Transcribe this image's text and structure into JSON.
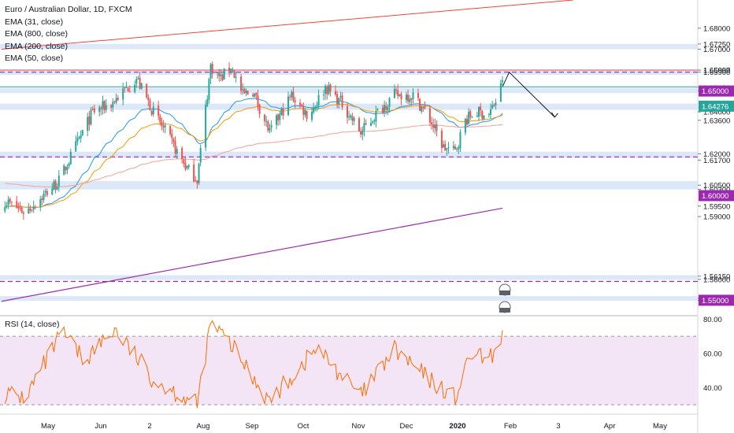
{
  "legend": {
    "symbol": "Euro / Australian Dollar, 1D, FXCM",
    "indicators": [
      "EMA (31, close)",
      "EMA (800, close)",
      "EMA (200, close)",
      "EMA (50, close)"
    ]
  },
  "rsi": {
    "label": "RSI (14, close)",
    "levels": [
      "80.00",
      "60.00",
      "40.00"
    ],
    "band": [
      30,
      70
    ],
    "range": [
      25,
      82
    ]
  },
  "colors": {
    "up": "#26a69a",
    "down": "#ef5350",
    "zone": "#d6e4f7",
    "magenta": "#9c27b0",
    "ema31": "#2196f3",
    "ema50": "#ff9800",
    "ema200": "#f4a09a",
    "ema800": "#9c27b0",
    "trend": "#f44336",
    "last_price": "#26a69a",
    "rsi_line": "#ff6d00",
    "rsi_band": "#f3e5f5"
  },
  "chart_data": {
    "type": "candlestick",
    "price_axis": {
      "min": 1.543,
      "max": 1.6935,
      "tick_labels": [
        "1.68000",
        "1.67250",
        "1.67000",
        "1.66000",
        "1.65997",
        "1.65900",
        "1.65150",
        "1.65000",
        "1.64000",
        "1.63600",
        "1.62000",
        "1.61700",
        "1.60500",
        "1.60300",
        "1.59500",
        "1.59000",
        "1.56150",
        "1.56000",
        "1.55100",
        "1.55092",
        "1.55000"
      ]
    },
    "time_axis": [
      "May",
      "Jun",
      "2",
      "Aug",
      "Sep",
      "Oct",
      "Nov",
      "Dec",
      "2020",
      "Feb",
      "3",
      "Apr",
      "May"
    ],
    "price_badges": [
      {
        "label": "1.65000",
        "value": 1.65,
        "color": "#9c27b0"
      },
      {
        "label": "1.64276",
        "value": 1.64276,
        "color": "#26a69a"
      },
      {
        "label": "1.60000",
        "value": 1.6,
        "color": "#9c27b0"
      },
      {
        "label": "1.55000",
        "value": 1.55,
        "color": "#9c27b0"
      }
    ],
    "support_resistance_zones": [
      [
        1.6725,
        1.67
      ],
      [
        1.66,
        1.659
      ],
      [
        1.6515,
        1.649
      ],
      [
        1.644,
        1.641
      ],
      [
        1.621,
        1.618
      ],
      [
        1.607,
        1.603
      ],
      [
        1.562,
        1.56
      ],
      [
        1.552,
        1.55
      ]
    ],
    "dashed_levels": [
      1.659,
      1.6185,
      1.559
    ],
    "horizontal_lines": [
      {
        "value": 1.66,
        "color": "#f44336"
      },
      {
        "value": 1.652,
        "color": "#26a69a"
      }
    ],
    "trend_line_upper": {
      "from": [
        "2019-04-06",
        1.67
      ],
      "to": [
        "2020-03-10",
        1.6935
      ]
    },
    "projection": [
      [
        "2020-01-28",
        1.652
      ],
      [
        "2020-02-01",
        1.659
      ],
      [
        "2020-02-28",
        1.6375
      ]
    ],
    "ema800_line": {
      "from": [
        "2019-04-06",
        1.5495
      ],
      "to": [
        "2020-01-28",
        1.594
      ]
    },
    "anchors": [
      [
        "2019-04-06",
        1.5985
      ],
      [
        "2019-04-20",
        1.592
      ],
      [
        "2019-05-10",
        1.607
      ],
      [
        "2019-05-30",
        1.64
      ],
      [
        "2019-06-10",
        1.644
      ],
      [
        "2019-06-25",
        1.656
      ],
      [
        "2019-07-05",
        1.64
      ],
      [
        "2019-07-25",
        1.613
      ],
      [
        "2019-07-31",
        1.608
      ],
      [
        "2019-08-08",
        1.662
      ],
      [
        "2019-08-14",
        1.656
      ],
      [
        "2019-08-20",
        1.662
      ],
      [
        "2019-08-27",
        1.648
      ],
      [
        "2019-09-02",
        1.65
      ],
      [
        "2019-09-12",
        1.63
      ],
      [
        "2019-09-25",
        1.648
      ],
      [
        "2019-10-05",
        1.638
      ],
      [
        "2019-10-15",
        1.652
      ],
      [
        "2019-10-25",
        1.644
      ],
      [
        "2019-11-05",
        1.63
      ],
      [
        "2019-11-15",
        1.64
      ],
      [
        "2019-11-25",
        1.648
      ],
      [
        "2019-12-06",
        1.648
      ],
      [
        "2019-12-15",
        1.638
      ],
      [
        "2019-12-24",
        1.623
      ],
      [
        "2019-12-31",
        1.621
      ],
      [
        "2020-01-06",
        1.636
      ],
      [
        "2020-01-12",
        1.64
      ],
      [
        "2020-01-20",
        1.639
      ],
      [
        "2020-01-26",
        1.648
      ],
      [
        "2020-01-28",
        1.656
      ]
    ],
    "rsi_anchors": [
      [
        "2019-04-06",
        37
      ],
      [
        "2019-04-20",
        34
      ],
      [
        "2019-05-12",
        72
      ],
      [
        "2019-05-25",
        56
      ],
      [
        "2019-06-12",
        74
      ],
      [
        "2019-07-05",
        45
      ],
      [
        "2019-07-31",
        30
      ],
      [
        "2019-08-08",
        78
      ],
      [
        "2019-08-20",
        65
      ],
      [
        "2019-09-12",
        32
      ],
      [
        "2019-10-10",
        63
      ],
      [
        "2019-11-05",
        35
      ],
      [
        "2019-11-25",
        62
      ],
      [
        "2019-12-15",
        45
      ],
      [
        "2019-12-31",
        34
      ],
      [
        "2020-01-10",
        60
      ],
      [
        "2020-01-20",
        55
      ],
      [
        "2020-01-28",
        71
      ]
    ]
  }
}
